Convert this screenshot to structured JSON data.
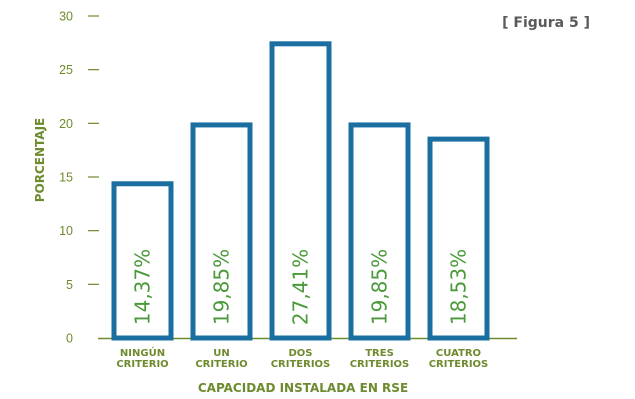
{
  "figure_label": "[ Figura 5 ]",
  "colors": {
    "bar_stroke": "#1a6fa0",
    "axis": "#6e8b2e",
    "text": "#6e8b2e",
    "value_label": "#4a9a3a",
    "figure_label": "#5a5a5a"
  },
  "chart_data": {
    "type": "bar",
    "categories": [
      [
        "NINGÚN",
        "CRITERIO"
      ],
      [
        "UN",
        "CRITERIO"
      ],
      [
        "DOS",
        "CRITERIOS"
      ],
      [
        "TRES",
        "CRITERIOS"
      ],
      [
        "CUATRO",
        "CRITERIOS"
      ]
    ],
    "values": [
      14.37,
      19.85,
      27.41,
      19.85,
      18.53
    ],
    "value_labels": [
      "14,37%",
      "19,85%",
      "27,41%",
      "19,85%",
      "18,53%"
    ],
    "xlabel": "CAPACIDAD INSTALADA EN RSE",
    "ylabel": "PORCENTAJE",
    "ylim": [
      0,
      30
    ],
    "yticks": [
      0,
      5,
      10,
      15,
      20,
      25,
      30
    ],
    "grid": false
  }
}
